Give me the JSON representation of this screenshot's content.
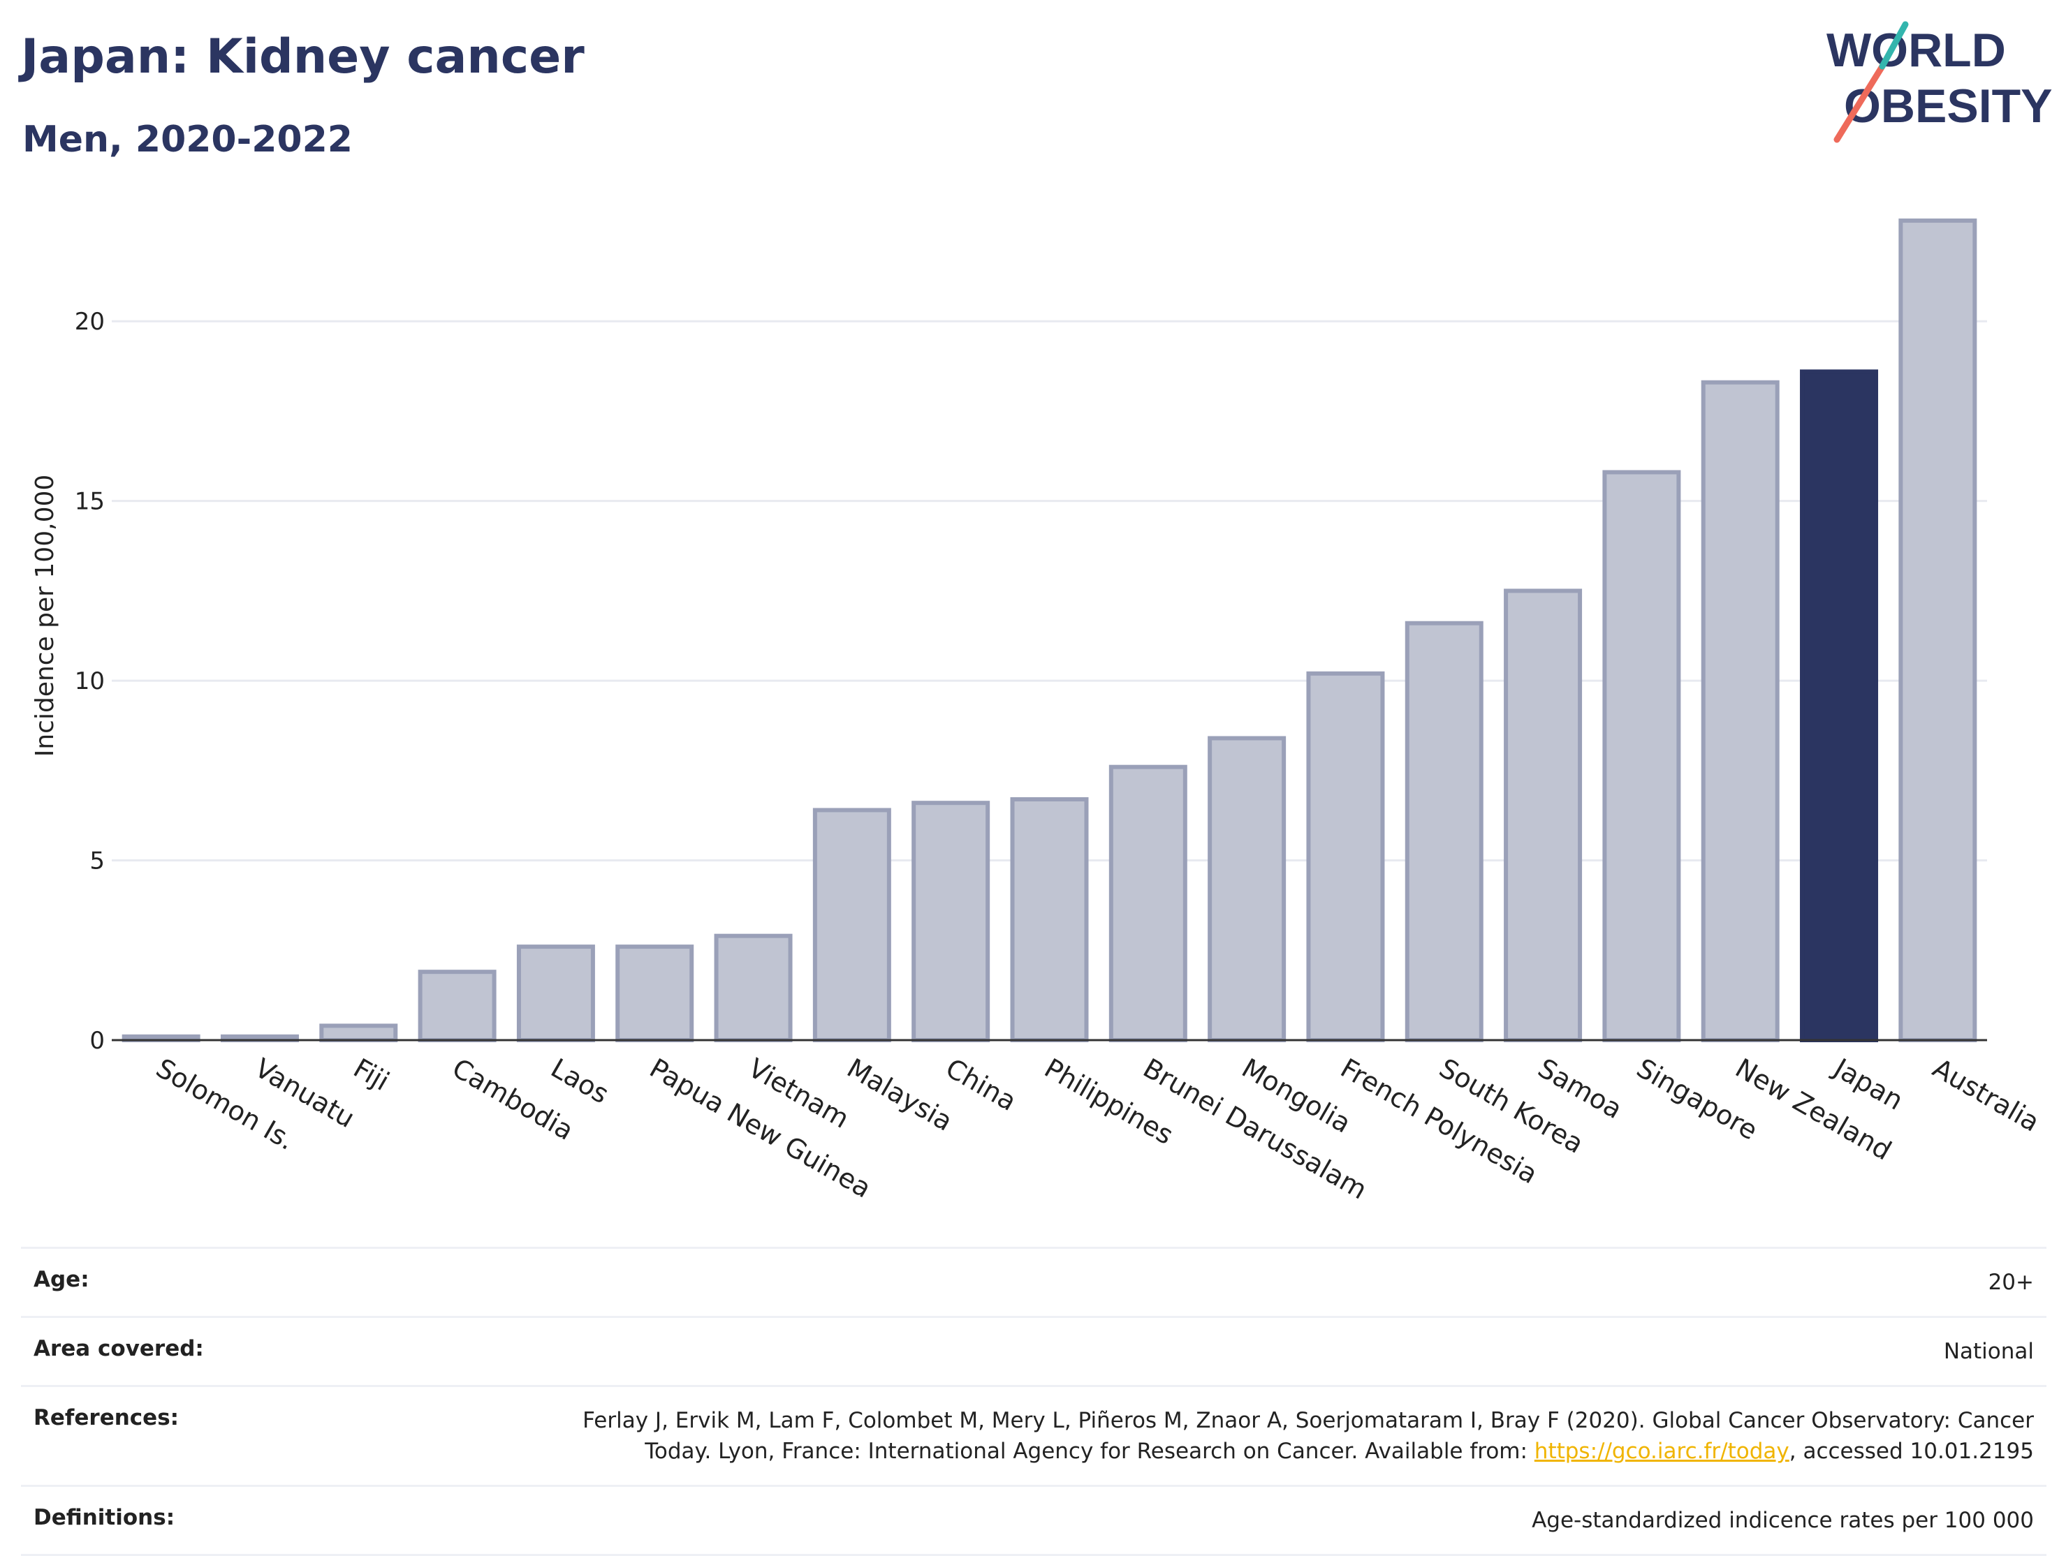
{
  "header": {
    "title": "Japan: Kidney cancer",
    "subtitle": "Men, 2020-2022"
  },
  "logo": {
    "line1": "WORLD",
    "line2": "OBESITY"
  },
  "chart_data": {
    "type": "bar",
    "title": "Japan: Kidney cancer",
    "subtitle": "Men, 2020-2022",
    "ylabel": "Incidence per 100,000",
    "xlabel": "",
    "ylim": [
      0,
      23.5
    ],
    "yticks": [
      0,
      5,
      10,
      15,
      20
    ],
    "grid": true,
    "highlight": "Japan",
    "colors": {
      "bar": "#c0c4d2",
      "bar_border": "#9aa0b8",
      "highlight": "#2b3561"
    },
    "categories": [
      "Solomon Is.",
      "Vanuatu",
      "Fiji",
      "Cambodia",
      "Laos",
      "Papua New Guinea",
      "Vietnam",
      "Malaysia",
      "China",
      "Philippines",
      "Brunei Darussalam",
      "Mongolia",
      "French Polynesia",
      "South Korea",
      "Samoa",
      "Singapore",
      "New Zealand",
      "Japan",
      "Australia"
    ],
    "values": [
      0.1,
      0.1,
      0.4,
      1.9,
      2.6,
      2.6,
      2.9,
      6.4,
      6.6,
      6.7,
      7.6,
      8.4,
      10.2,
      11.6,
      12.5,
      15.8,
      18.3,
      18.6,
      22.8
    ]
  },
  "meta": {
    "age": {
      "label": "Age:",
      "value": "20+"
    },
    "area": {
      "label": "Area covered:",
      "value": "National"
    },
    "references": {
      "label": "References:",
      "line1": "Ferlay J, Ervik M, Lam F, Colombet M, Mery L, Piñeros M, Znaor A, Soerjomataram I, Bray F (2020). Global Cancer Observatory: Cancer",
      "line2_pre": "Today. Lyon, France: International Agency for Research on Cancer. Available from: ",
      "link": "https://gco.iarc.fr/today",
      "line2_post": ", accessed 10.01.2195"
    },
    "definitions": {
      "label": "Definitions:",
      "value": "Age-standardized indicence rates per 100 000"
    }
  }
}
